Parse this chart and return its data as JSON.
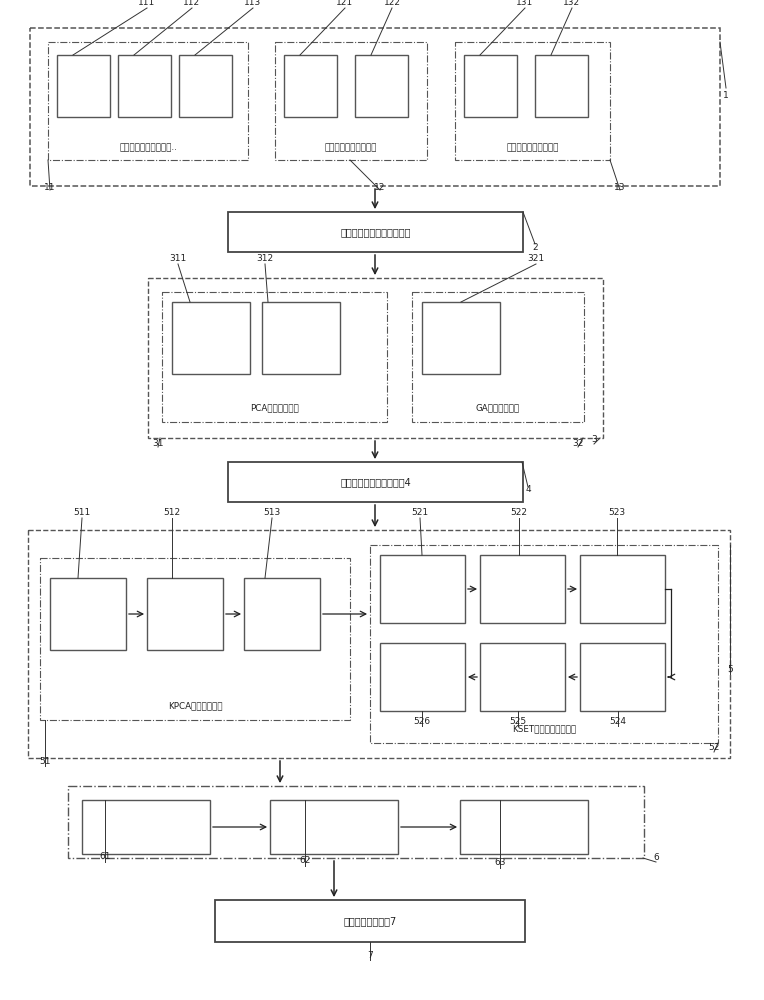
{
  "bg_color": "#ffffff",
  "labels": {
    "module2": "无缝接入数据应用接口模块",
    "module4": "高级范样本数据采集模块4",
    "module7": "人机界面显示模块7",
    "sub11": "变压器本体数据库单元..",
    "sub12": "变压器设备数据库单元",
    "sub13": "变压器外部数据库单元",
    "sub31": "PCA数据处理单元",
    "sub32": "GA数据处理单元",
    "sub51": "KPCA降维处理单元",
    "sub52": "KSET故障识别管理单元"
  }
}
